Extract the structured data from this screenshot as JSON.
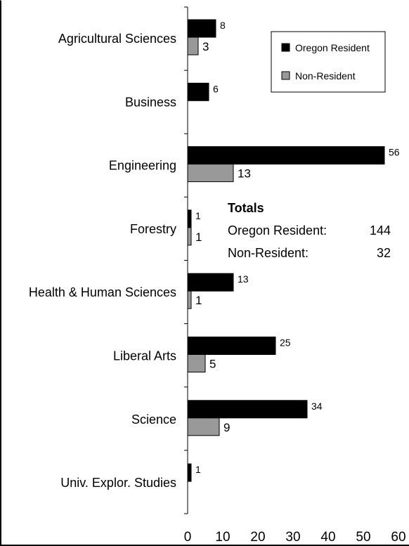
{
  "chart_data": {
    "type": "bar",
    "orientation": "horizontal",
    "categories": [
      "Agricultural Sciences",
      "Business",
      "Engineering",
      "Forestry",
      "Health & Human Sciences",
      "Liberal Arts",
      "Science",
      "Univ. Explor. Studies"
    ],
    "series": [
      {
        "name": "Oregon Resident",
        "color": "#000000",
        "values": [
          8,
          6,
          56,
          1,
          13,
          25,
          34,
          1
        ]
      },
      {
        "name": "Non-Resident",
        "color": "#999999",
        "values": [
          3,
          null,
          13,
          1,
          1,
          5,
          9,
          null
        ]
      }
    ],
    "xlim": [
      0,
      60
    ],
    "xticks": [
      "0",
      "10",
      "20",
      "30",
      "40",
      "50",
      "60"
    ],
    "legend_position": "top-right",
    "grid": false
  },
  "totals": {
    "title": "Totals",
    "rows": [
      {
        "label": "Oregon Resident:",
        "value": "144"
      },
      {
        "label": "Non-Resident:",
        "value": "32"
      }
    ]
  }
}
